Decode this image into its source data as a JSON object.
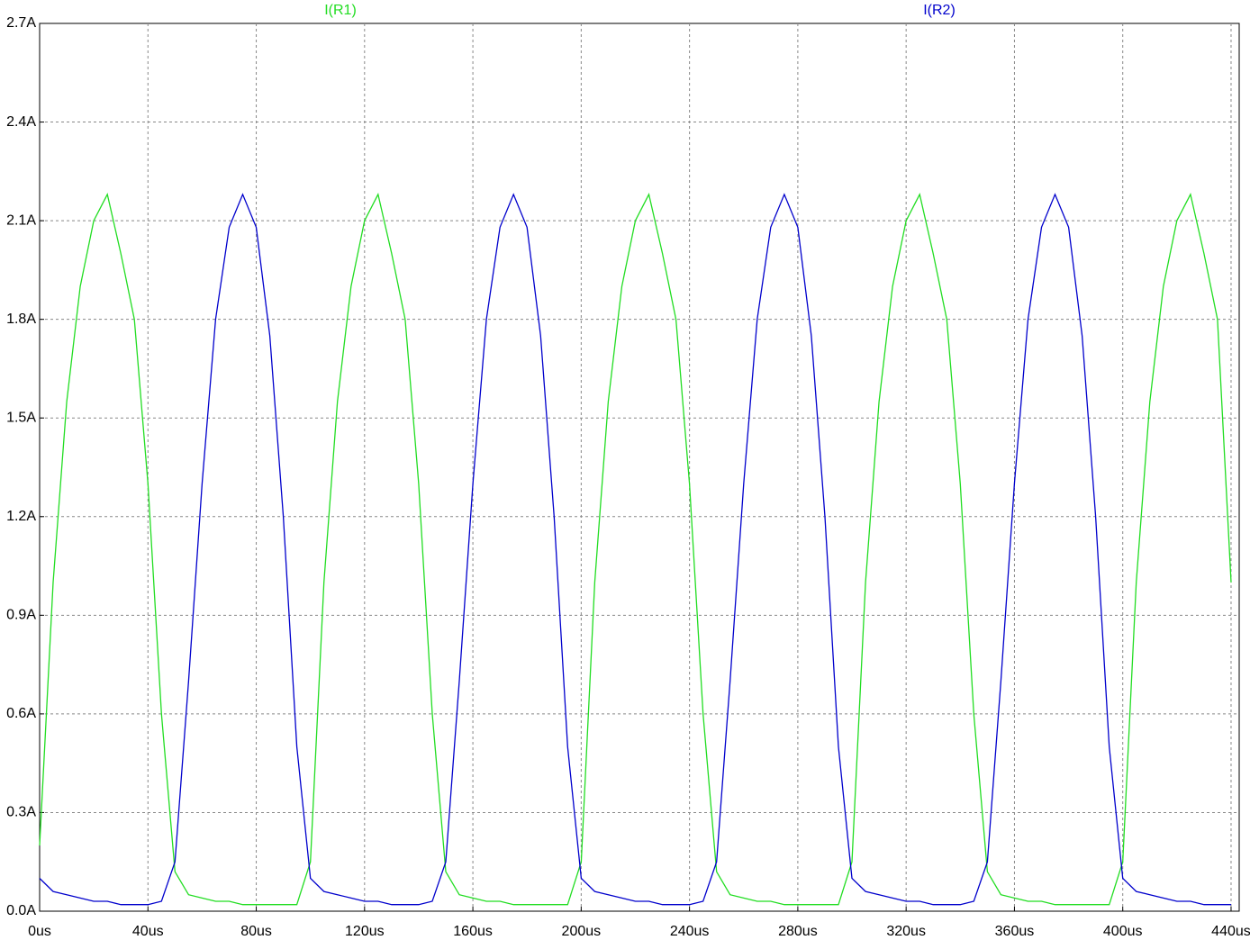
{
  "chart_data": {
    "type": "line",
    "x": [
      0,
      5,
      10,
      15,
      20,
      25,
      30,
      35,
      40,
      45,
      50,
      55,
      60,
      65,
      70,
      75,
      80,
      85,
      90,
      95,
      100,
      105,
      110,
      115,
      120,
      125,
      130,
      135,
      140,
      145,
      150,
      155,
      160,
      165,
      170,
      175,
      180,
      185,
      190,
      195,
      200,
      205,
      210,
      215,
      220,
      225,
      230,
      235,
      240,
      245,
      250,
      255,
      260,
      265,
      270,
      275,
      280,
      285,
      290,
      295,
      300,
      305,
      310,
      315,
      320,
      325,
      330,
      335,
      340,
      345,
      350,
      355,
      360,
      365,
      370,
      375,
      380,
      385,
      390,
      395,
      400,
      405,
      410,
      415,
      420,
      425,
      430,
      435,
      440
    ],
    "series": [
      {
        "name": "I(R1)",
        "color": "#22dd22",
        "values": [
          0.2,
          1.0,
          1.55,
          1.9,
          2.1,
          2.18,
          2.0,
          1.8,
          1.3,
          0.6,
          0.12,
          0.05,
          0.04,
          0.03,
          0.03,
          0.02,
          0.02,
          0.02,
          0.02,
          0.02,
          0.15,
          1.0,
          1.55,
          1.9,
          2.1,
          2.18,
          2.0,
          1.8,
          1.3,
          0.6,
          0.12,
          0.05,
          0.04,
          0.03,
          0.03,
          0.02,
          0.02,
          0.02,
          0.02,
          0.02,
          0.15,
          1.0,
          1.55,
          1.9,
          2.1,
          2.18,
          2.0,
          1.8,
          1.3,
          0.6,
          0.12,
          0.05,
          0.04,
          0.03,
          0.03,
          0.02,
          0.02,
          0.02,
          0.02,
          0.02,
          0.15,
          1.0,
          1.55,
          1.9,
          2.1,
          2.18,
          2.0,
          1.8,
          1.3,
          0.6,
          0.12,
          0.05,
          0.04,
          0.03,
          0.03,
          0.02,
          0.02,
          0.02,
          0.02,
          0.02,
          0.15,
          1.0,
          1.55,
          1.9,
          2.1,
          2.18,
          2.0,
          1.8,
          1.0
        ]
      },
      {
        "name": "I(R2)",
        "color": "#0000cc",
        "values": [
          0.1,
          0.06,
          0.05,
          0.04,
          0.03,
          0.03,
          0.02,
          0.02,
          0.02,
          0.03,
          0.15,
          0.7,
          1.3,
          1.8,
          2.08,
          2.18,
          2.08,
          1.75,
          1.2,
          0.5,
          0.1,
          0.06,
          0.05,
          0.04,
          0.03,
          0.03,
          0.02,
          0.02,
          0.02,
          0.03,
          0.15,
          0.7,
          1.3,
          1.8,
          2.08,
          2.18,
          2.08,
          1.75,
          1.2,
          0.5,
          0.1,
          0.06,
          0.05,
          0.04,
          0.03,
          0.03,
          0.02,
          0.02,
          0.02,
          0.03,
          0.15,
          0.7,
          1.3,
          1.8,
          2.08,
          2.18,
          2.08,
          1.75,
          1.2,
          0.5,
          0.1,
          0.06,
          0.05,
          0.04,
          0.03,
          0.03,
          0.02,
          0.02,
          0.02,
          0.03,
          0.15,
          0.7,
          1.3,
          1.8,
          2.08,
          2.18,
          2.08,
          1.75,
          1.2,
          0.5,
          0.1,
          0.06,
          0.05,
          0.04,
          0.03,
          0.03,
          0.02,
          0.02,
          0.02
        ]
      }
    ],
    "xlim": [
      0,
      443
    ],
    "ylim": [
      0,
      2.7
    ],
    "xticks": [
      {
        "value": 0,
        "label": "0us"
      },
      {
        "value": 40,
        "label": "40us"
      },
      {
        "value": 80,
        "label": "80us"
      },
      {
        "value": 120,
        "label": "120us"
      },
      {
        "value": 160,
        "label": "160us"
      },
      {
        "value": 200,
        "label": "200us"
      },
      {
        "value": 240,
        "label": "240us"
      },
      {
        "value": 280,
        "label": "280us"
      },
      {
        "value": 320,
        "label": "320us"
      },
      {
        "value": 360,
        "label": "360us"
      },
      {
        "value": 400,
        "label": "400us"
      },
      {
        "value": 440,
        "label": "440us"
      }
    ],
    "yticks": [
      {
        "value": 0,
        "label": "0.0A"
      },
      {
        "value": 0.3,
        "label": "0.3A"
      },
      {
        "value": 0.6,
        "label": "0.6A"
      },
      {
        "value": 0.9,
        "label": "0.9A"
      },
      {
        "value": 1.2,
        "label": "1.2A"
      },
      {
        "value": 1.5,
        "label": "1.5A"
      },
      {
        "value": 1.8,
        "label": "1.8A"
      },
      {
        "value": 2.1,
        "label": "2.1A"
      },
      {
        "value": 2.4,
        "label": "2.4A"
      },
      {
        "value": 2.7,
        "label": "2.7A"
      }
    ],
    "grid": true
  }
}
